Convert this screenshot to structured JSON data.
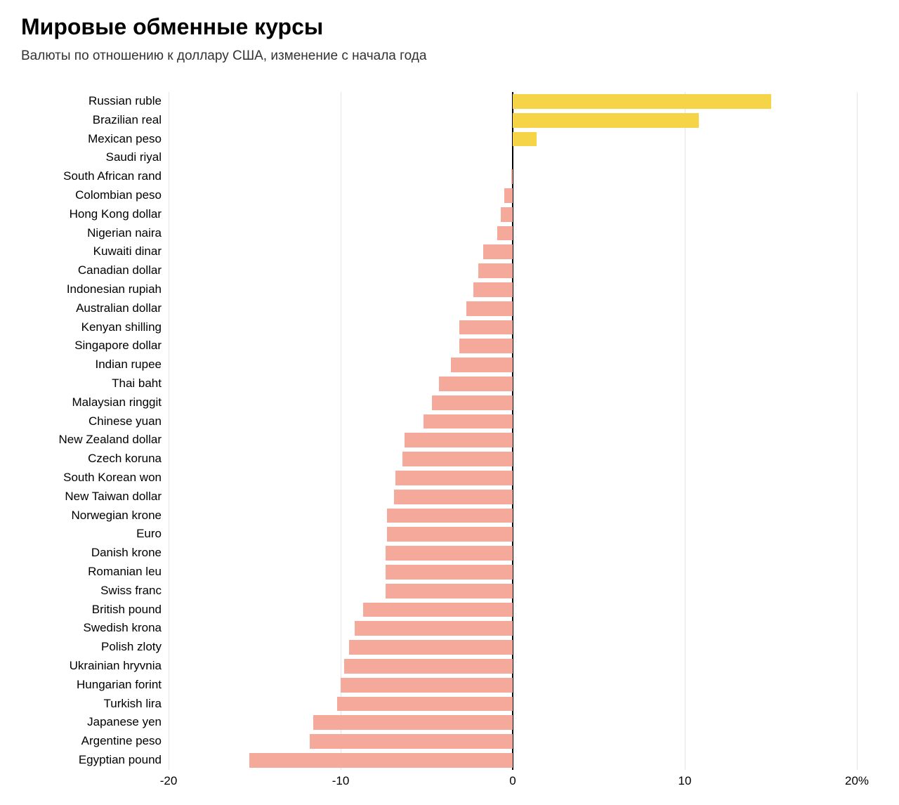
{
  "title": "Мировые обменные курсы",
  "subtitle": "Валюты по отношению к доллару США, изменение с начала года",
  "chart": {
    "type": "bar-horizontal",
    "xmin": -20,
    "xmax": 20,
    "xticks": [
      -20,
      -10,
      0,
      10,
      20
    ],
    "xtick_labels": [
      "-20",
      "-10",
      "0",
      "10",
      "20%"
    ],
    "gridline_color": "#e5e5e5",
    "zero_line_color": "#000000",
    "background_color": "#ffffff",
    "positive_color": "#f5d547",
    "negative_color": "#f5a99a",
    "bar_row_height": 26.8,
    "bar_inner_pad": 3,
    "label_fontsize": 17,
    "title_fontsize": 32,
    "subtitle_fontsize": 19,
    "data": [
      {
        "label": "Russian ruble",
        "value": 15.0
      },
      {
        "label": "Brazilian real",
        "value": 10.8
      },
      {
        "label": "Mexican peso",
        "value": 1.4
      },
      {
        "label": "Saudi riyal",
        "value": 0.0
      },
      {
        "label": "South African rand",
        "value": -0.1
      },
      {
        "label": "Colombian peso",
        "value": -0.5
      },
      {
        "label": "Hong Kong dollar",
        "value": -0.7
      },
      {
        "label": "Nigerian naira",
        "value": -0.9
      },
      {
        "label": "Kuwaiti dinar",
        "value": -1.7
      },
      {
        "label": "Canadian dollar",
        "value": -2.0
      },
      {
        "label": "Indonesian rupiah",
        "value": -2.3
      },
      {
        "label": "Australian dollar",
        "value": -2.7
      },
      {
        "label": "Kenyan shilling",
        "value": -3.1
      },
      {
        "label": "Singapore dollar",
        "value": -3.1
      },
      {
        "label": "Indian rupee",
        "value": -3.6
      },
      {
        "label": "Thai baht",
        "value": -4.3
      },
      {
        "label": "Malaysian ringgit",
        "value": -4.7
      },
      {
        "label": "Chinese yuan",
        "value": -5.2
      },
      {
        "label": "New Zealand dollar",
        "value": -6.3
      },
      {
        "label": "Czech koruna",
        "value": -6.4
      },
      {
        "label": "South Korean won",
        "value": -6.8
      },
      {
        "label": "New Taiwan dollar",
        "value": -6.9
      },
      {
        "label": "Norwegian krone",
        "value": -7.3
      },
      {
        "label": "Euro",
        "value": -7.3
      },
      {
        "label": "Danish krone",
        "value": -7.4
      },
      {
        "label": "Romanian leu",
        "value": -7.4
      },
      {
        "label": "Swiss franc",
        "value": -7.4
      },
      {
        "label": "British pound",
        "value": -8.7
      },
      {
        "label": "Swedish krona",
        "value": -9.2
      },
      {
        "label": "Polish zloty",
        "value": -9.5
      },
      {
        "label": "Ukrainian hryvnia",
        "value": -9.8
      },
      {
        "label": "Hungarian forint",
        "value": -10.0
      },
      {
        "label": "Turkish lira",
        "value": -10.2
      },
      {
        "label": "Japanese yen",
        "value": -11.6
      },
      {
        "label": "Argentine peso",
        "value": -11.8
      },
      {
        "label": "Egyptian pound",
        "value": -15.3
      }
    ]
  }
}
